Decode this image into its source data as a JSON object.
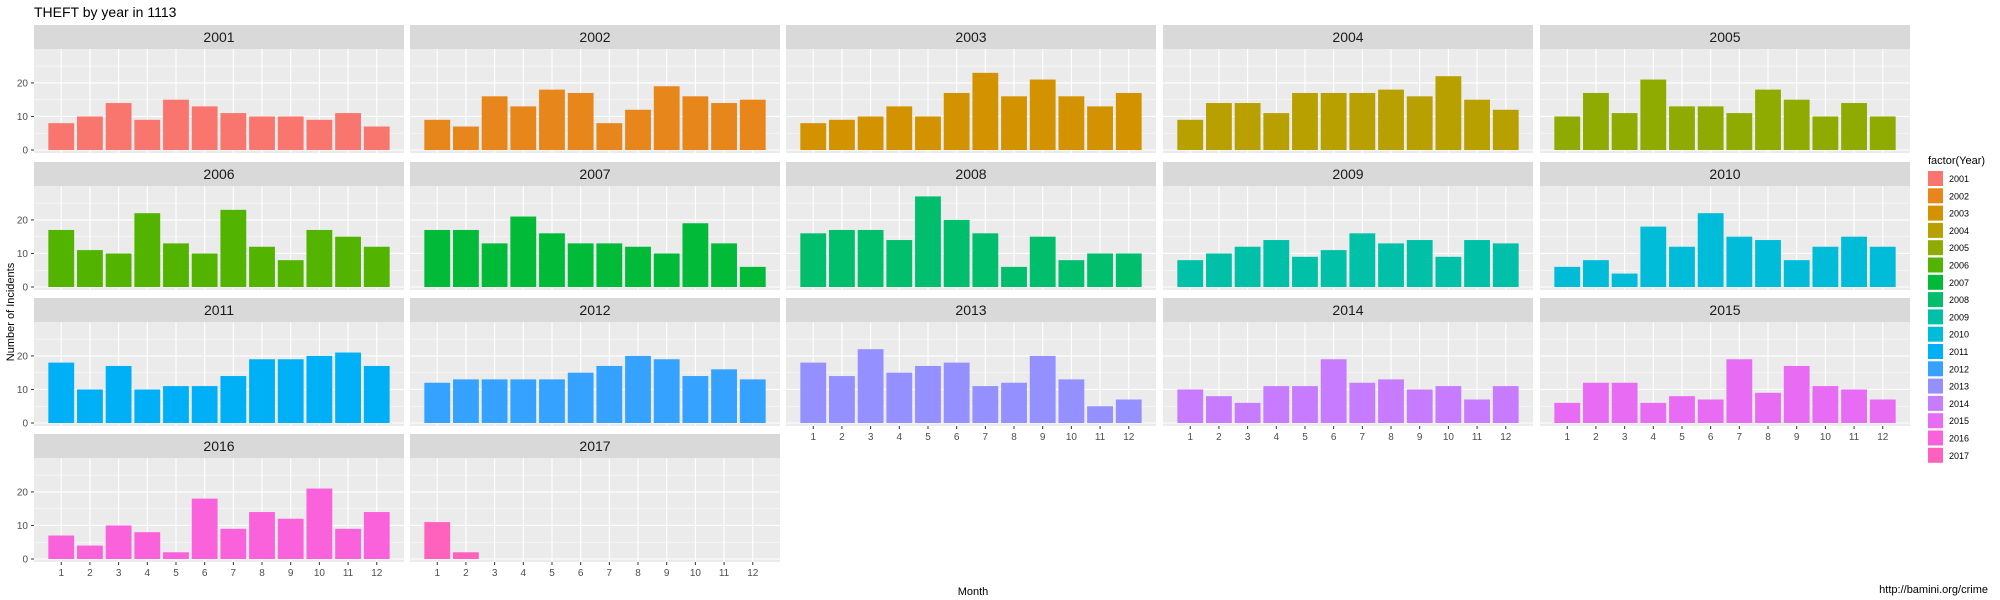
{
  "title": "THEFT by year in 1113",
  "source": "http://bamini.org/crime",
  "colors": {
    "panel_bg": "#ebebeb",
    "strip_bg": "#d9d9d9",
    "grid": "#ffffff"
  },
  "chart_data": {
    "type": "bar",
    "facet_by": "year",
    "x": [
      1,
      2,
      3,
      4,
      5,
      6,
      7,
      8,
      9,
      10,
      11,
      12
    ],
    "xlabel": "Month",
    "ylabel": "Number of Incidents",
    "yticks": [
      0,
      10,
      20
    ],
    "legend_title": "factor(Year)",
    "legend_position": "right",
    "panels": [
      {
        "year": "2001",
        "color": "#F8766D",
        "values": [
          8,
          10,
          14,
          9,
          15,
          13,
          11,
          10,
          10,
          9,
          11,
          7
        ]
      },
      {
        "year": "2002",
        "color": "#E7861B",
        "values": [
          9,
          7,
          16,
          13,
          18,
          17,
          8,
          12,
          19,
          16,
          14,
          15
        ]
      },
      {
        "year": "2003",
        "color": "#D39200",
        "values": [
          8,
          9,
          10,
          13,
          10,
          17,
          23,
          16,
          21,
          16,
          13,
          17
        ]
      },
      {
        "year": "2004",
        "color": "#B8A000",
        "values": [
          9,
          14,
          14,
          11,
          17,
          17,
          17,
          18,
          16,
          22,
          15,
          12
        ]
      },
      {
        "year": "2005",
        "color": "#8FAA00",
        "values": [
          10,
          17,
          11,
          21,
          13,
          13,
          11,
          18,
          15,
          10,
          14,
          10
        ]
      },
      {
        "year": "2006",
        "color": "#53B400",
        "values": [
          17,
          11,
          10,
          22,
          13,
          10,
          23,
          12,
          8,
          17,
          15,
          12
        ]
      },
      {
        "year": "2007",
        "color": "#00BA38",
        "values": [
          17,
          17,
          13,
          21,
          16,
          13,
          13,
          12,
          10,
          19,
          13,
          6
        ]
      },
      {
        "year": "2008",
        "color": "#00BE6C",
        "values": [
          16,
          17,
          17,
          14,
          27,
          20,
          16,
          6,
          15,
          8,
          10,
          10
        ]
      },
      {
        "year": "2009",
        "color": "#00C1A7",
        "values": [
          8,
          10,
          12,
          14,
          9,
          11,
          16,
          13,
          14,
          9,
          14,
          13
        ]
      },
      {
        "year": "2010",
        "color": "#00BCD8",
        "values": [
          6,
          8,
          4,
          18,
          12,
          22,
          15,
          14,
          8,
          12,
          15,
          12
        ]
      },
      {
        "year": "2011",
        "color": "#00B0F6",
        "values": [
          18,
          10,
          17,
          10,
          11,
          11,
          14,
          19,
          19,
          20,
          21,
          17
        ]
      },
      {
        "year": "2012",
        "color": "#35A2FF",
        "values": [
          12,
          13,
          13,
          13,
          13,
          15,
          17,
          20,
          19,
          14,
          16,
          13
        ]
      },
      {
        "year": "2013",
        "color": "#9590FF",
        "values": [
          18,
          14,
          22,
          15,
          17,
          18,
          11,
          12,
          20,
          13,
          5,
          7
        ]
      },
      {
        "year": "2014",
        "color": "#C77CFF",
        "values": [
          10,
          8,
          6,
          11,
          11,
          19,
          12,
          13,
          10,
          11,
          7,
          11
        ]
      },
      {
        "year": "2015",
        "color": "#E76BF3",
        "values": [
          6,
          12,
          12,
          6,
          8,
          7,
          19,
          9,
          17,
          11,
          10,
          7
        ]
      },
      {
        "year": "2016",
        "color": "#FA62DB",
        "values": [
          7,
          4,
          10,
          8,
          2,
          18,
          9,
          14,
          12,
          21,
          9,
          14
        ]
      },
      {
        "year": "2017",
        "color": "#FF62BC",
        "values": [
          11,
          2,
          0,
          0,
          0,
          0,
          0,
          0,
          0,
          0,
          0,
          0
        ]
      }
    ]
  }
}
